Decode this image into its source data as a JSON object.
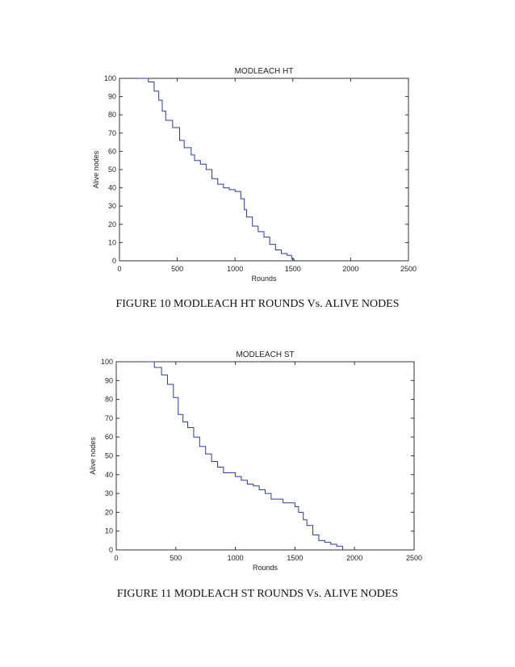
{
  "chart_data": [
    {
      "type": "line",
      "title": "MODLEACH HT",
      "xlabel": "Rounds",
      "ylabel": "Alive nodes",
      "xlim": [
        0,
        2500
      ],
      "ylim": [
        0,
        100
      ],
      "xticks": [
        0,
        500,
        1000,
        1500,
        2000,
        2500
      ],
      "yticks": [
        0,
        10,
        20,
        30,
        40,
        50,
        60,
        70,
        80,
        90,
        100
      ],
      "grid": false,
      "line_color": "#2b3a9e",
      "series": [
        {
          "x": [
            160,
            250,
            300,
            340,
            370,
            400,
            460,
            520,
            560,
            620,
            650,
            700,
            750,
            800,
            850,
            900,
            950,
            1000,
            1050,
            1080,
            1100,
            1150,
            1200,
            1250,
            1300,
            1350,
            1400,
            1450,
            1490,
            1510
          ],
          "y": [
            100,
            98,
            93,
            88,
            82,
            77,
            73,
            66,
            62,
            58,
            55,
            53,
            50,
            45,
            42,
            40,
            39,
            38,
            34,
            28,
            24,
            19,
            16,
            13,
            9,
            6,
            4,
            3,
            1,
            0
          ]
        }
      ]
    },
    {
      "type": "line",
      "title": "MODLEACH ST",
      "xlabel": "Rounds",
      "ylabel": "Alive nodes",
      "xlim": [
        0,
        2500
      ],
      "ylim": [
        0,
        100
      ],
      "xticks": [
        0,
        500,
        1000,
        1500,
        2000,
        2500
      ],
      "yticks": [
        0,
        10,
        20,
        30,
        40,
        50,
        60,
        70,
        80,
        90,
        100
      ],
      "grid": false,
      "line_color": "#2b3a9e",
      "series": [
        {
          "x": [
            250,
            320,
            380,
            430,
            480,
            520,
            560,
            600,
            650,
            700,
            750,
            800,
            850,
            900,
            1000,
            1050,
            1100,
            1150,
            1200,
            1250,
            1300,
            1400,
            1500,
            1530,
            1570,
            1600,
            1650,
            1700,
            1750,
            1800,
            1850,
            1900
          ],
          "y": [
            100,
            97,
            93,
            88,
            81,
            72,
            68,
            65,
            60,
            55,
            51,
            47,
            44,
            41,
            39,
            37,
            35,
            34,
            32,
            30,
            27,
            25,
            23,
            20,
            16,
            13,
            8,
            5,
            4,
            3,
            2,
            0
          ]
        }
      ]
    }
  ],
  "captions": {
    "figure10": "FIGURE 10 MODLEACH HT ROUNDS Vs. ALIVE NODES",
    "figure11": "FIGURE 11 MODLEACH ST ROUNDS Vs. ALIVE NODES"
  }
}
